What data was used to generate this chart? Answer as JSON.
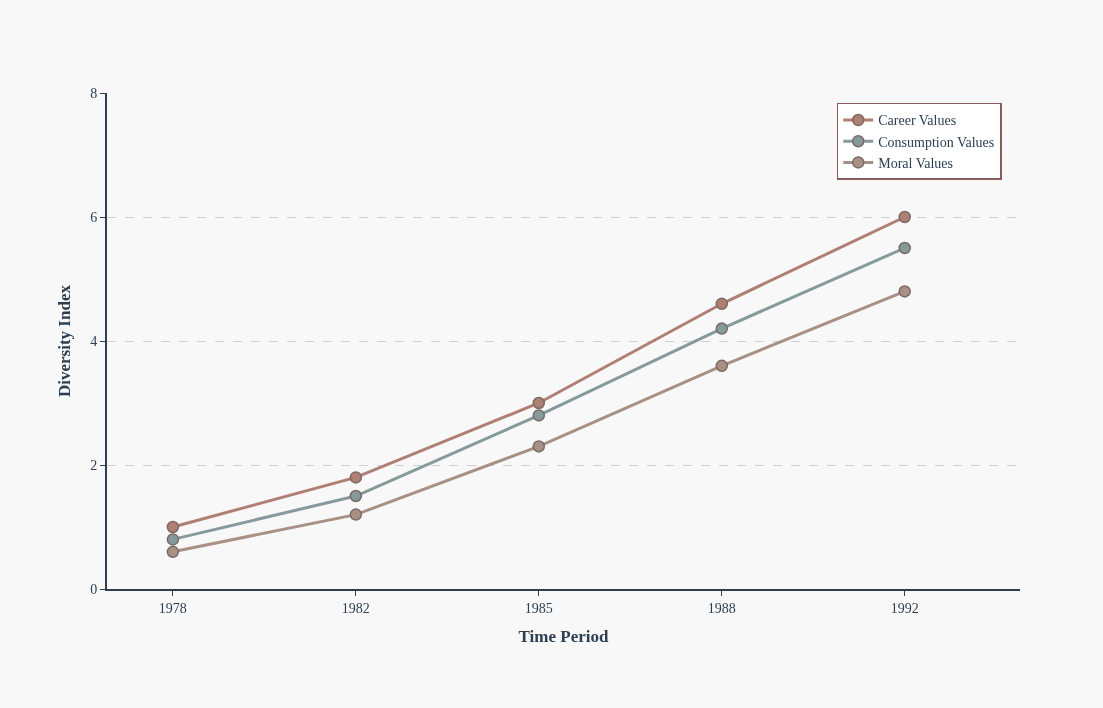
{
  "chart_data": {
    "type": "line",
    "xlabel": "Time Period",
    "ylabel": "Diversity Index",
    "categories": [
      "1978",
      "1982",
      "1985",
      "1988",
      "1992"
    ],
    "series": [
      {
        "name": "Career Values",
        "color": "#b07f74",
        "values": [
          1.0,
          1.8,
          3.0,
          4.6,
          6.0
        ]
      },
      {
        "name": "Consumption Values",
        "color": "#869a9c",
        "values": [
          0.8,
          1.5,
          2.8,
          4.2,
          5.5
        ]
      },
      {
        "name": "Moral Values",
        "color": "#a89085",
        "values": [
          0.6,
          1.2,
          2.3,
          3.6,
          4.8
        ]
      }
    ],
    "ylim": [
      0,
      8
    ],
    "yticks": [
      0,
      2,
      4,
      6,
      8
    ],
    "grid": "y",
    "legend": "top right",
    "marker": "circle",
    "line_style": "solid"
  }
}
